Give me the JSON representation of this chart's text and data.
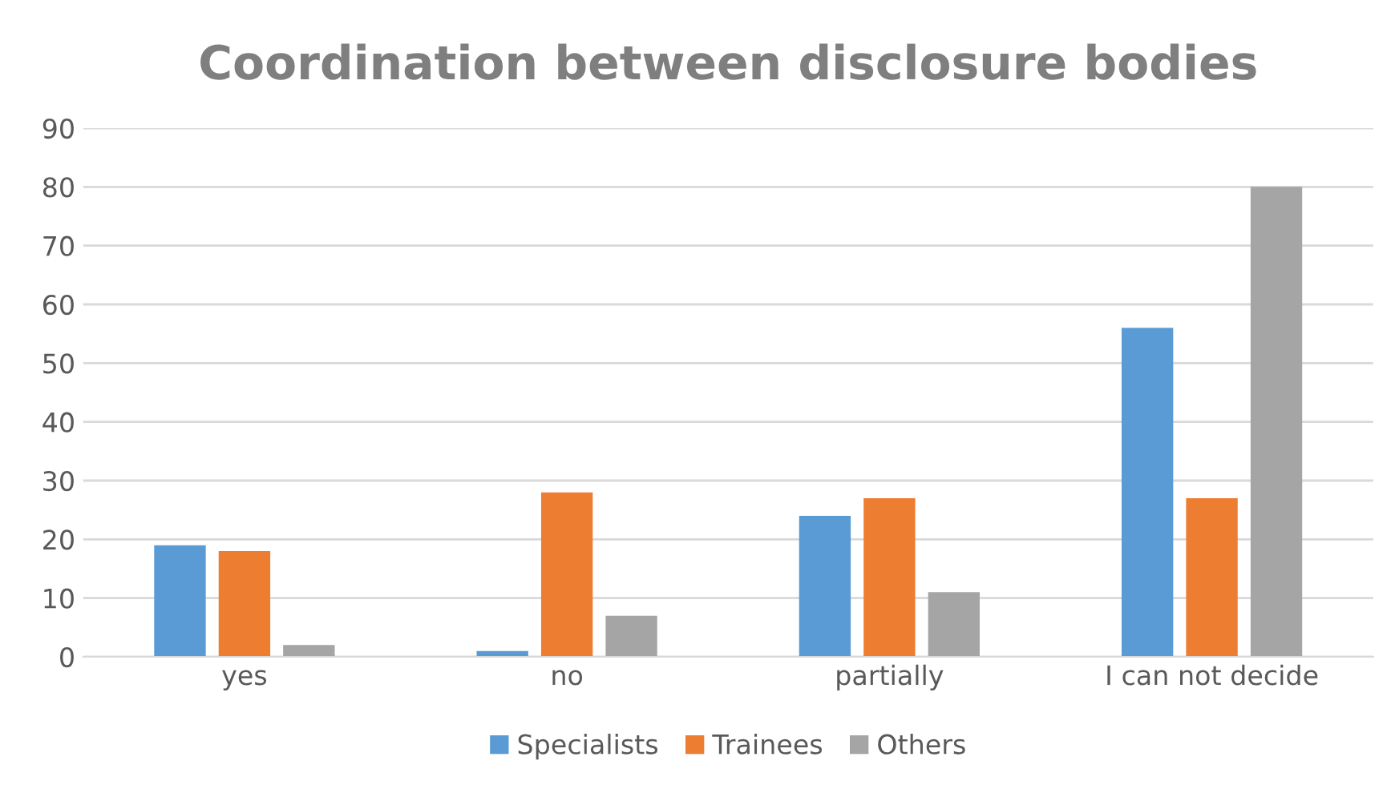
{
  "chart_data": {
    "type": "bar",
    "title": "Coordination between disclosure bodies",
    "categories": [
      "yes",
      "no",
      "partially",
      "I can not decide"
    ],
    "series": [
      {
        "name": "Specialists",
        "color": "#5b9bd5",
        "values": [
          19,
          1,
          24,
          56
        ]
      },
      {
        "name": "Trainees",
        "color": "#ed7d31",
        "values": [
          18,
          28,
          27,
          27
        ]
      },
      {
        "name": "Others",
        "color": "#a5a5a5",
        "values": [
          2,
          7,
          11,
          80
        ]
      }
    ],
    "ylim": [
      0,
      90
    ],
    "yticks": [
      0,
      10,
      20,
      30,
      40,
      50,
      60,
      70,
      80,
      90
    ],
    "grid": "y",
    "legend": "bottom"
  }
}
